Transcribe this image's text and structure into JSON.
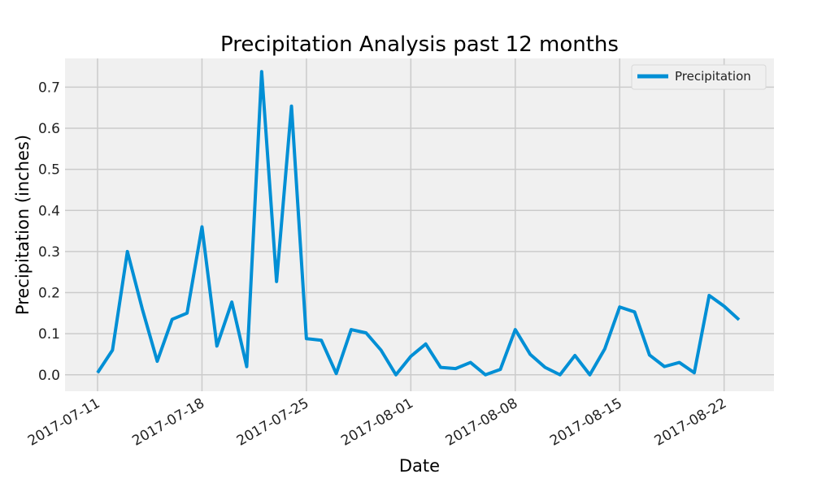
{
  "chart_data": {
    "type": "line",
    "title": "Precipitation Analysis past 12 months",
    "xlabel": "Date",
    "ylabel": "Precipitation (inches)",
    "ylim": [
      -0.04,
      0.77
    ],
    "yticks": [
      0.0,
      0.1,
      0.2,
      0.3,
      0.4,
      0.5,
      0.6,
      0.7
    ],
    "ytick_labels": [
      "0.0",
      "0.1",
      "0.2",
      "0.3",
      "0.4",
      "0.5",
      "0.6",
      "0.7"
    ],
    "xlim": [
      "2017-07-11",
      "2017-08-25"
    ],
    "xticks": [
      "2017-07-11",
      "2017-07-18",
      "2017-07-25",
      "2017-08-01",
      "2017-08-08",
      "2017-08-15",
      "2017-08-22"
    ],
    "grid": true,
    "legend_position": "top-right",
    "background_color": "#f0f0f0",
    "grid_color": "#cbcbcb",
    "series": [
      {
        "name": "Precipitation",
        "color": "#008fd5",
        "x": [
          "2017-07-11",
          "2017-07-12",
          "2017-07-13",
          "2017-07-14",
          "2017-07-15",
          "2017-07-16",
          "2017-07-17",
          "2017-07-18",
          "2017-07-19",
          "2017-07-20",
          "2017-07-21",
          "2017-07-22",
          "2017-07-23",
          "2017-07-24",
          "2017-07-25",
          "2017-07-26",
          "2017-07-27",
          "2017-07-28",
          "2017-07-29",
          "2017-07-30",
          "2017-07-31",
          "2017-08-01",
          "2017-08-02",
          "2017-08-03",
          "2017-08-04",
          "2017-08-05",
          "2017-08-06",
          "2017-08-07",
          "2017-08-08",
          "2017-08-09",
          "2017-08-10",
          "2017-08-11",
          "2017-08-12",
          "2017-08-13",
          "2017-08-14",
          "2017-08-15",
          "2017-08-16",
          "2017-08-17",
          "2017-08-18",
          "2017-08-19",
          "2017-08-20",
          "2017-08-21",
          "2017-08-22",
          "2017-08-23"
        ],
        "values": [
          0.005,
          0.06,
          0.3,
          0.16,
          0.033,
          0.135,
          0.15,
          0.36,
          0.07,
          0.177,
          0.02,
          0.738,
          0.227,
          0.654,
          0.088,
          0.084,
          0.003,
          0.11,
          0.102,
          0.06,
          0.0,
          0.045,
          0.075,
          0.018,
          0.015,
          0.03,
          0.0,
          0.013,
          0.11,
          0.05,
          0.018,
          0.0,
          0.047,
          0.0,
          0.063,
          0.165,
          0.153,
          0.048,
          0.02,
          0.03,
          0.005,
          0.193,
          0.167,
          0.134
        ]
      }
    ]
  }
}
